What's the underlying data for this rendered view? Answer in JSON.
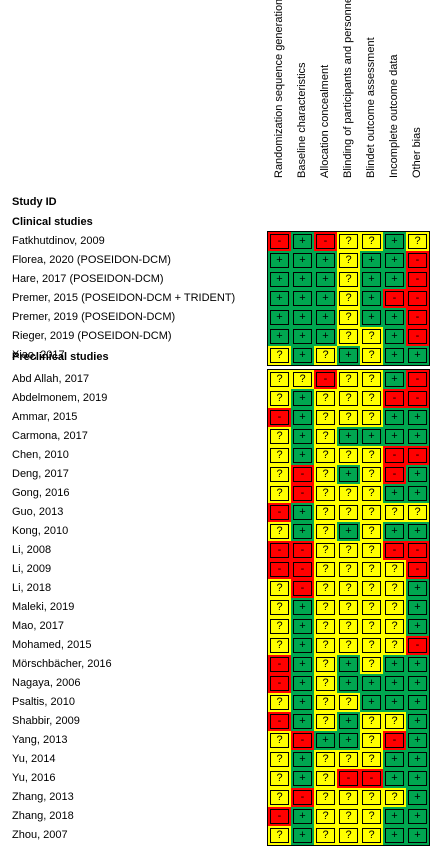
{
  "columns": [
    "Randomization sequence generation",
    "Baseline characteristics",
    "Allocation concealment",
    "Blinding of participants and personnel",
    "Blindet outcome assessment",
    "Incomplete outcome data",
    "Other bias"
  ],
  "headers": {
    "study_id": "Study ID",
    "clinical": "Clinical studies",
    "preclinical": "Preclinical studies"
  },
  "colors": {
    "+": "#00a650",
    "?": "#ffff00",
    "-": "#ff0000"
  },
  "clinical": [
    {
      "study": "Fatkhutdinov, 2009",
      "marks": [
        "-",
        "+",
        "-",
        "?",
        "?",
        "+",
        "?"
      ]
    },
    {
      "study": "Florea, 2020 (POSEIDON-DCM)",
      "marks": [
        "+",
        "+",
        "+",
        "?",
        "+",
        "+",
        "-"
      ]
    },
    {
      "study": "Hare, 2017 (POSEIDON-DCM)",
      "marks": [
        "+",
        "+",
        "+",
        "?",
        "+",
        "+",
        "-"
      ]
    },
    {
      "study": "Premer, 2015 (POSEIDON-DCM + TRIDENT)",
      "marks": [
        "+",
        "+",
        "+",
        "?",
        "+",
        "-",
        "-"
      ]
    },
    {
      "study": "Premer, 2019 (POSEIDON-DCM)",
      "marks": [
        "+",
        "+",
        "+",
        "?",
        "+",
        "+",
        "-"
      ]
    },
    {
      "study": "Rieger, 2019 (POSEIDON-DCM)",
      "marks": [
        "+",
        "+",
        "+",
        "?",
        "?",
        "+",
        "-"
      ]
    },
    {
      "study": "Xiao, 2017",
      "marks": [
        "?",
        "+",
        "?",
        "+",
        "?",
        "+",
        "+"
      ]
    }
  ],
  "preclinical": [
    {
      "study": "Abd Allah, 2017",
      "marks": [
        "?",
        "?",
        "-",
        "?",
        "?",
        "+",
        "-"
      ]
    },
    {
      "study": "Abdelmonem, 2019",
      "marks": [
        "?",
        "+",
        "?",
        "?",
        "?",
        "-",
        "-"
      ]
    },
    {
      "study": "Ammar, 2015",
      "marks": [
        "-",
        "+",
        "?",
        "?",
        "?",
        "+",
        "+"
      ]
    },
    {
      "study": "Carmona, 2017",
      "marks": [
        "?",
        "+",
        "?",
        "+",
        "+",
        "+",
        "+"
      ]
    },
    {
      "study": "Chen, 2010",
      "marks": [
        "?",
        "+",
        "?",
        "?",
        "?",
        "-",
        "-"
      ]
    },
    {
      "study": "Deng, 2017",
      "marks": [
        "?",
        "-",
        "?",
        "+",
        "?",
        "-",
        "+"
      ]
    },
    {
      "study": "Gong, 2016",
      "marks": [
        "?",
        "-",
        "?",
        "?",
        "?",
        "+",
        "+"
      ]
    },
    {
      "study": "Guo, 2013",
      "marks": [
        "-",
        "+",
        "?",
        "?",
        "?",
        "?",
        "?"
      ]
    },
    {
      "study": "Kong, 2010",
      "marks": [
        "?",
        "+",
        "?",
        "+",
        "?",
        "+",
        "+"
      ]
    },
    {
      "study": "Li, 2008",
      "marks": [
        "-",
        "-",
        "?",
        "?",
        "?",
        "-",
        "-"
      ]
    },
    {
      "study": "Li, 2009",
      "marks": [
        "-",
        "-",
        "?",
        "?",
        "?",
        "?",
        "-"
      ]
    },
    {
      "study": "Li, 2018",
      "marks": [
        "?",
        "-",
        "?",
        "?",
        "?",
        "?",
        "+"
      ]
    },
    {
      "study": "Maleki, 2019",
      "marks": [
        "?",
        "+",
        "?",
        "?",
        "?",
        "?",
        "+"
      ]
    },
    {
      "study": "Mao, 2017",
      "marks": [
        "?",
        "+",
        "?",
        "?",
        "?",
        "?",
        "+"
      ]
    },
    {
      "study": "Mohamed, 2015",
      "marks": [
        "?",
        "+",
        "?",
        "?",
        "?",
        "?",
        "-"
      ]
    },
    {
      "study": "Mörschbächer, 2016",
      "marks": [
        "-",
        "+",
        "?",
        "+",
        "?",
        "+",
        "+"
      ]
    },
    {
      "study": "Nagaya, 2006",
      "marks": [
        "-",
        "+",
        "?",
        "+",
        "+",
        "+",
        "+"
      ]
    },
    {
      "study": "Psaltis, 2010",
      "marks": [
        "?",
        "+",
        "?",
        "?",
        "+",
        "+",
        "+"
      ]
    },
    {
      "study": "Shabbir, 2009",
      "marks": [
        "-",
        "+",
        "?",
        "+",
        "?",
        "?",
        "+"
      ]
    },
    {
      "study": "Yang, 2013",
      "marks": [
        "?",
        "-",
        "+",
        "+",
        "?",
        "-",
        "+"
      ]
    },
    {
      "study": "Yu, 2014",
      "marks": [
        "?",
        "+",
        "?",
        "?",
        "?",
        "+",
        "+"
      ]
    },
    {
      "study": "Yu, 2016",
      "marks": [
        "?",
        "+",
        "?",
        "-",
        "-",
        "+",
        "+"
      ]
    },
    {
      "study": "Zhang, 2013",
      "marks": [
        "?",
        "-",
        "?",
        "?",
        "?",
        "?",
        "+"
      ]
    },
    {
      "study": "Zhang, 2018",
      "marks": [
        "-",
        "+",
        "?",
        "?",
        "?",
        "+",
        "+"
      ]
    },
    {
      "study": "Zhou, 2007",
      "marks": [
        "?",
        "+",
        "?",
        "?",
        "?",
        "+",
        "+"
      ]
    }
  ]
}
